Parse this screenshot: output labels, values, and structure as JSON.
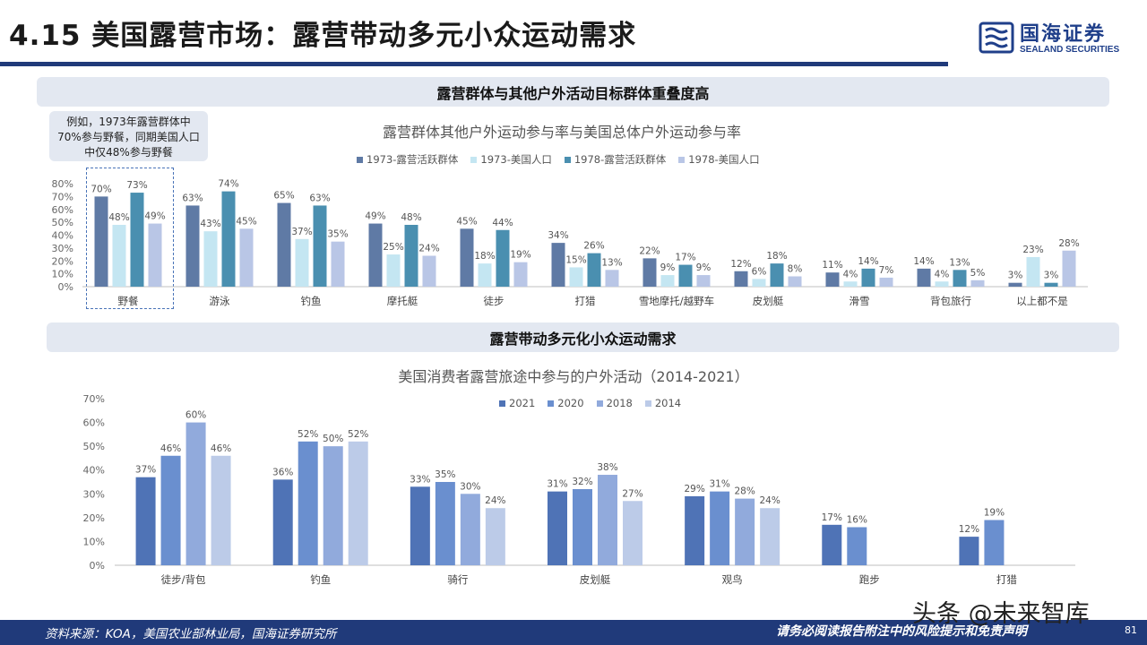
{
  "header": {
    "title": "4.15 美国露营市场：露营带动多元小众运动需求",
    "logo_cn": "国海证券",
    "logo_en": "SEALAND SECURITIES"
  },
  "sections": {
    "band1": "露营群体与其他户外活动目标群体重叠度高",
    "band2": "露营带动多元化小众运动需求"
  },
  "note": {
    "text": "例如，1973年露营群体中70%参与野餐，同期美国人口中仅48%参与野餐"
  },
  "footer": {
    "source": "资料来源：KOA，美国农业部林业局，国海证券研究所",
    "disclaimer": "请务必阅读报告附注中的风险提示和免责声明",
    "page": "81",
    "watermark": "头条 @未来智库"
  },
  "colors": {
    "primary": "#203a7a",
    "band_bg": "#e3e8f1"
  },
  "chart_data": [
    {
      "type": "bar",
      "title": "露营群体其他户外运动参与率与美国总体户外运动参与率",
      "categories": [
        "野餐",
        "游泳",
        "钓鱼",
        "摩托艇",
        "徒步",
        "打猎",
        "雪地摩托/越野车",
        "皮划艇",
        "滑雪",
        "背包旅行",
        "以上都不是"
      ],
      "series": [
        {
          "name": "1973-露营活跃群体",
          "color": "#5f7aa5",
          "values": [
            70,
            63,
            65,
            49,
            45,
            34,
            22,
            12,
            11,
            14,
            3
          ]
        },
        {
          "name": "1973-美国人口",
          "color": "#c4e6f2",
          "values": [
            48,
            43,
            37,
            25,
            18,
            15,
            9,
            6,
            4,
            4,
            23
          ]
        },
        {
          "name": "1978-露营活跃群体",
          "color": "#4a8fb0",
          "values": [
            73,
            74,
            63,
            48,
            44,
            26,
            17,
            18,
            14,
            13,
            3
          ]
        },
        {
          "name": "1978-美国人口",
          "color": "#b9c6e6",
          "values": [
            49,
            45,
            35,
            24,
            19,
            13,
            9,
            8,
            7,
            5,
            28
          ]
        }
      ],
      "y_ticks": [
        "0%",
        "10%",
        "20%",
        "30%",
        "40%",
        "50%",
        "60%",
        "70%",
        "80%"
      ],
      "ylim": [
        0,
        80
      ],
      "legend": "top",
      "grid": false
    },
    {
      "type": "bar",
      "title": "美国消费者露营旅途中参与的户外活动（2014-2021）",
      "categories": [
        "徒步/背包",
        "钓鱼",
        "骑行",
        "皮划艇",
        "观鸟",
        "跑步",
        "打猎"
      ],
      "series": [
        {
          "name": "2021",
          "color": "#4f73b6",
          "values": [
            37,
            36,
            33,
            31,
            29,
            17,
            12
          ]
        },
        {
          "name": "2020",
          "color": "#6a8fcf",
          "values": [
            46,
            52,
            35,
            32,
            31,
            16,
            19
          ]
        },
        {
          "name": "2018",
          "color": "#91aadc",
          "values": [
            60,
            50,
            30,
            38,
            28,
            null,
            null
          ]
        },
        {
          "name": "2014",
          "color": "#bccbe8",
          "values": [
            46,
            52,
            24,
            27,
            24,
            null,
            null
          ]
        }
      ],
      "y_ticks": [
        "0%",
        "10%",
        "20%",
        "30%",
        "40%",
        "50%",
        "60%",
        "70%"
      ],
      "ylim": [
        0,
        70
      ],
      "legend": "top",
      "grid": false
    }
  ]
}
